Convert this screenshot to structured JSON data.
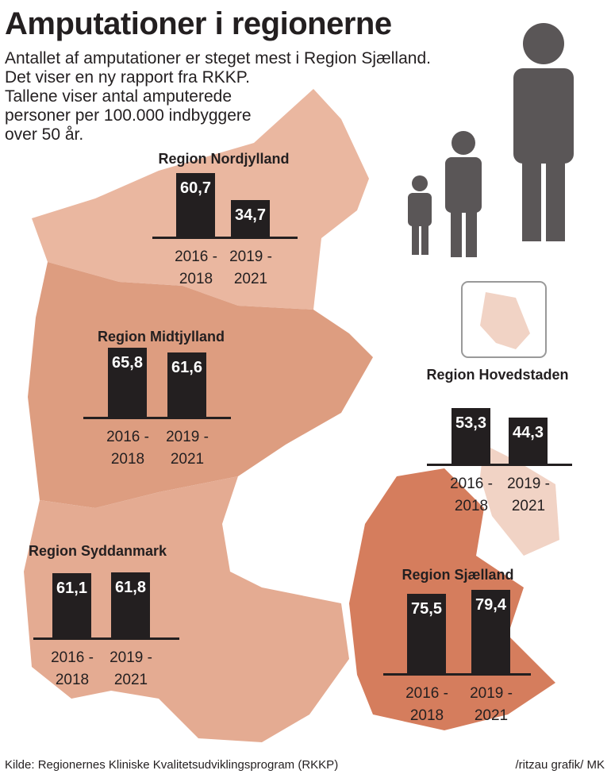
{
  "title": "Amputationer i regionerne",
  "subtitle": [
    "Antallet af amputationer er steget mest i Region Sjælland.",
    "Det viser en ny rapport fra RKKP.",
    "Tallene viser antal amputerede personer per 100.000 indbyggere over 50 år."
  ],
  "source": "Kilde: Regionernes Kliniske Kvalitetsudviklingsprogram (RKKP)",
  "credit": "/ritzau grafik/ MK",
  "chart_data": [
    {
      "type": "bar",
      "title": "Region Nordjylland",
      "categories": [
        "2016 - 2018",
        "2019 - 2021"
      ],
      "values": [
        60.7,
        34.7
      ],
      "value_labels": [
        "60,7",
        "34,7"
      ]
    },
    {
      "type": "bar",
      "title": "Region Midtjylland",
      "categories": [
        "2016 - 2018",
        "2019 - 2021"
      ],
      "values": [
        65.8,
        61.6
      ],
      "value_labels": [
        "65,8",
        "61,6"
      ]
    },
    {
      "type": "bar",
      "title": "Region Hovedstaden",
      "categories": [
        "2016 - 2018",
        "2019 - 2021"
      ],
      "values": [
        53.3,
        44.3
      ],
      "value_labels": [
        "53,3",
        "44,3"
      ]
    },
    {
      "type": "bar",
      "title": "Region Syddanmark",
      "categories": [
        "2016 - 2018",
        "2019 - 2021"
      ],
      "values": [
        61.1,
        61.8
      ],
      "value_labels": [
        "61,1",
        "61,8"
      ]
    },
    {
      "type": "bar",
      "title": "Region Sjælland",
      "categories": [
        "2016 - 2018",
        "2019 - 2021"
      ],
      "values": [
        75.5,
        79.4
      ],
      "value_labels": [
        "75,5",
        "79,4"
      ]
    }
  ]
}
